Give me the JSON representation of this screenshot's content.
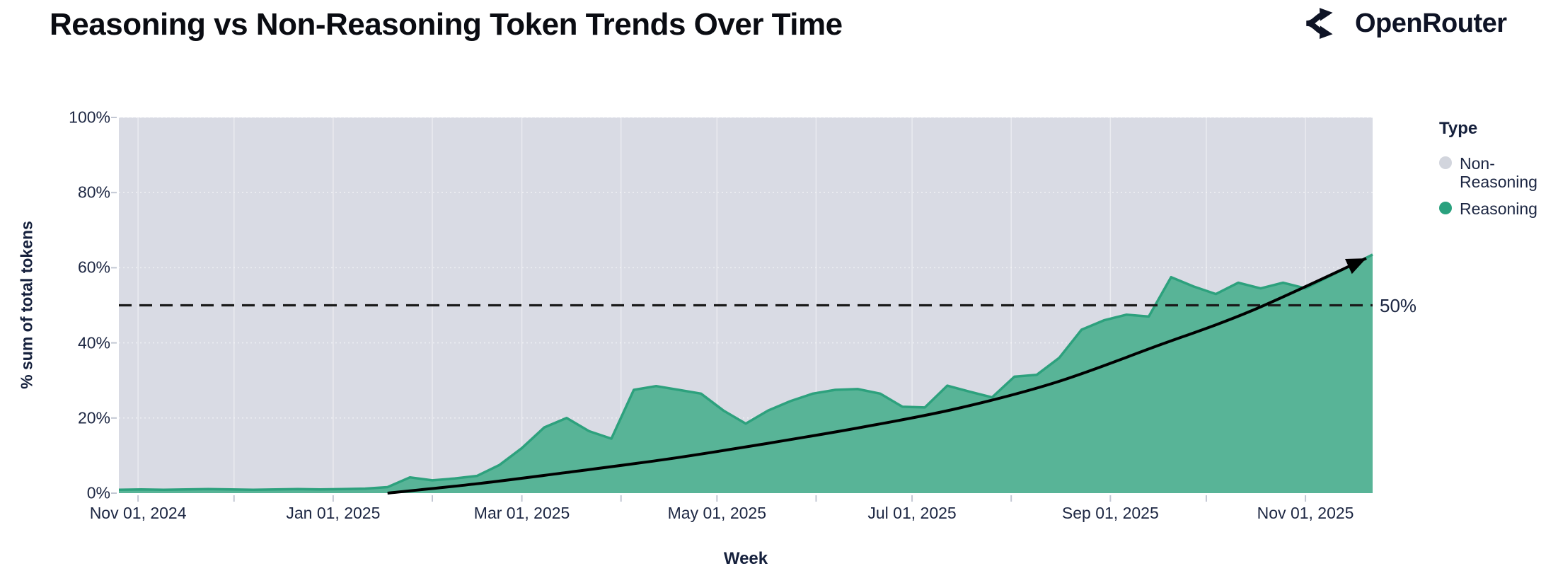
{
  "header": {
    "title": "Reasoning vs Non-Reasoning Token Trends Over Time",
    "brand": "OpenRouter"
  },
  "chart_data": {
    "type": "area",
    "stacked_percent": true,
    "title": "Reasoning vs Non-Reasoning Token Trends Over Time",
    "xlabel": "Week",
    "ylabel": "% sum of total tokens",
    "ylim": [
      0,
      100
    ],
    "yticks": [
      0,
      20,
      40,
      60,
      80,
      100
    ],
    "ytick_suffix": "%",
    "x_range": [
      "2024-10-26",
      "2025-11-22"
    ],
    "x_axis": {
      "months": [
        "2024-11-01",
        "2024-12-01",
        "2025-01-01",
        "2025-02-01",
        "2025-03-01",
        "2025-04-01",
        "2025-05-01",
        "2025-06-01",
        "2025-07-01",
        "2025-08-01",
        "2025-09-01",
        "2025-10-01",
        "2025-11-01"
      ],
      "labeled": [
        {
          "date": "2024-11-01",
          "label": "Nov 01, 2024"
        },
        {
          "date": "2025-01-01",
          "label": "Jan 01, 2025"
        },
        {
          "date": "2025-03-01",
          "label": "Mar 01, 2025"
        },
        {
          "date": "2025-05-01",
          "label": "May 01, 2025"
        },
        {
          "date": "2025-07-01",
          "label": "Jul 01, 2025"
        },
        {
          "date": "2025-09-01",
          "label": "Sep 01, 2025"
        },
        {
          "date": "2025-11-01",
          "label": "Nov 01, 2025"
        }
      ]
    },
    "weeks": [
      "2024-10-26",
      "2024-11-02",
      "2024-11-09",
      "2024-11-16",
      "2024-11-23",
      "2024-11-30",
      "2024-12-07",
      "2024-12-14",
      "2024-12-21",
      "2024-12-28",
      "2025-01-04",
      "2025-01-11",
      "2025-01-18",
      "2025-01-25",
      "2025-02-01",
      "2025-02-08",
      "2025-02-15",
      "2025-02-22",
      "2025-03-01",
      "2025-03-08",
      "2025-03-15",
      "2025-03-22",
      "2025-03-29",
      "2025-04-05",
      "2025-04-12",
      "2025-04-19",
      "2025-04-26",
      "2025-05-03",
      "2025-05-10",
      "2025-05-17",
      "2025-05-24",
      "2025-05-31",
      "2025-06-07",
      "2025-06-14",
      "2025-06-21",
      "2025-06-28",
      "2025-07-05",
      "2025-07-12",
      "2025-07-19",
      "2025-07-26",
      "2025-08-02",
      "2025-08-09",
      "2025-08-16",
      "2025-08-23",
      "2025-08-30",
      "2025-09-06",
      "2025-09-13",
      "2025-09-20",
      "2025-09-27",
      "2025-10-04",
      "2025-10-11",
      "2025-10-18",
      "2025-10-25",
      "2025-11-01",
      "2025-11-08",
      "2025-11-15",
      "2025-11-22"
    ],
    "series": [
      {
        "name": "Reasoning",
        "fill_color": "#58b497",
        "line_color": "#2da17d",
        "values": [
          0.9,
          1.0,
          0.9,
          1.0,
          1.1,
          1.0,
          0.9,
          1.0,
          1.1,
          1.0,
          1.1,
          1.2,
          1.6,
          4.2,
          3.4,
          3.9,
          4.6,
          7.5,
          12.0,
          17.5,
          20.0,
          16.5,
          14.5,
          27.5,
          28.5,
          27.5,
          26.5,
          22.0,
          18.5,
          22.0,
          24.5,
          26.5,
          27.5,
          27.7,
          26.5,
          23.0,
          22.8,
          28.6,
          27.0,
          25.5,
          31.0,
          31.5,
          36.0,
          43.5,
          46.0,
          47.5,
          47.0,
          57.5,
          55.0,
          53.0,
          56.0,
          54.5,
          56.0,
          54.5,
          57.5,
          60.5,
          63.5
        ]
      },
      {
        "name": "Non-Reasoning",
        "fill_color": "#d9dbe4",
        "note": "remainder to 100%"
      }
    ],
    "annotations": {
      "hline": {
        "y": 50,
        "label": "50%",
        "style": "dashed",
        "color": "#1a1a1a"
      },
      "trend_arrow": {
        "color": "#000000",
        "points": [
          [
            "2025-01-18",
            0
          ],
          [
            "2025-02-15",
            2.5
          ],
          [
            "2025-03-15",
            5.5
          ],
          [
            "2025-04-15",
            9
          ],
          [
            "2025-05-15",
            13
          ],
          [
            "2025-06-15",
            17.5
          ],
          [
            "2025-07-15",
            22.5
          ],
          [
            "2025-08-15",
            29.5
          ],
          [
            "2025-09-15",
            39
          ],
          [
            "2025-10-15",
            48.5
          ],
          [
            "2025-11-20",
            62.5
          ]
        ]
      }
    },
    "legend": {
      "title": "Type",
      "position": "right",
      "entries": [
        {
          "label": "Non-Reasoning",
          "color": "#d2d5dd"
        },
        {
          "label": "Reasoning",
          "color": "#2aa17e"
        }
      ]
    },
    "plot_bg": "#d9dbe4",
    "grid_color": "rgba(255,255,255,0.45)"
  }
}
